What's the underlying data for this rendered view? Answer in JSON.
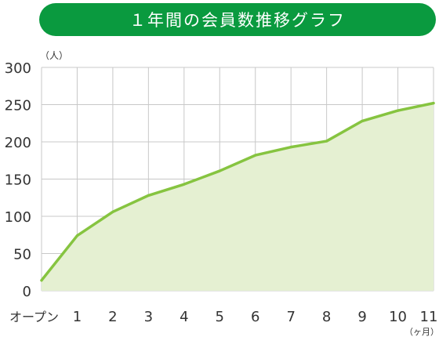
{
  "chart_data": {
    "type": "area",
    "title": "１年間の会員数推移グラフ",
    "ylabel": "（人）",
    "xlabel": "（ヶ月）",
    "categories": [
      "オープン",
      "1",
      "2",
      "3",
      "4",
      "5",
      "6",
      "7",
      "8",
      "9",
      "10",
      "11"
    ],
    "values": [
      14,
      74,
      106,
      128,
      143,
      161,
      182,
      193,
      201,
      228,
      242,
      252
    ],
    "ylim": [
      0,
      300
    ],
    "yticks": [
      0,
      50,
      100,
      150,
      200,
      250,
      300
    ],
    "grid": true,
    "colors": {
      "title_bg": "#0a9a3f",
      "line": "#86c440",
      "fill": "#e5f0d2",
      "grid": "#c8c8c8"
    }
  }
}
